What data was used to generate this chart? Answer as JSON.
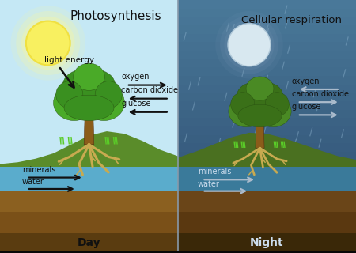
{
  "title_day": "Photosynthesis",
  "title_night": "Cellular respiration",
  "label_day": "Day",
  "label_night": "Night",
  "label_light_energy": "light energy",
  "arrows_day": [
    {
      "label": "oxygen",
      "direction": "right"
    },
    {
      "label": "carbon dioxide",
      "direction": "left"
    },
    {
      "label": "glucose",
      "direction": "left"
    }
  ],
  "arrows_night": [
    {
      "label": "oxygen",
      "direction": "left"
    },
    {
      "label": "carbon dioxide",
      "direction": "right"
    },
    {
      "label": "glucose",
      "direction": "right"
    }
  ],
  "sky_day": "#c5e8f5",
  "sky_night_top": "#2c4a6e",
  "sky_night_mid": "#3a5f82",
  "sky_night_bottom": "#4a7a9a",
  "ground_green_day": "#5a8c2a",
  "ground_green_night": "#4a7020",
  "ground_brown1_day": "#8b6020",
  "ground_brown1_night": "#6a4518",
  "ground_brown2_day": "#7a5018",
  "ground_brown2_night": "#5a3810",
  "ground_dark_day": "#5a3c10",
  "ground_dark_night": "#3a2808",
  "water_day": "#5aaccc",
  "water_night": "#3a7a9a",
  "sun_inner": "#f8f060",
  "sun_outer": "#f0e040",
  "sun_glow": "#f8f8a0",
  "moon_inner": "#d8e8f0",
  "moon_outer": "#b0c8d8",
  "moon_glow": "#7090b0",
  "trunk_color": "#8b5c1a",
  "canopy_day1": "#4aaa28",
  "canopy_day2": "#3a9020",
  "canopy_night1": "#4a8a24",
  "canopy_night2": "#3a7018",
  "root_color": "#c8aa50",
  "grass_color": "#5acc28",
  "rain_color": "#8ab0cc",
  "divider_color": "#8899aa",
  "text_day": "#111111",
  "text_night": "#ccddee",
  "arrow_day": "#111111",
  "arrow_night": "#aabbcc",
  "figsize": [
    4.5,
    3.2
  ],
  "dpi": 100
}
